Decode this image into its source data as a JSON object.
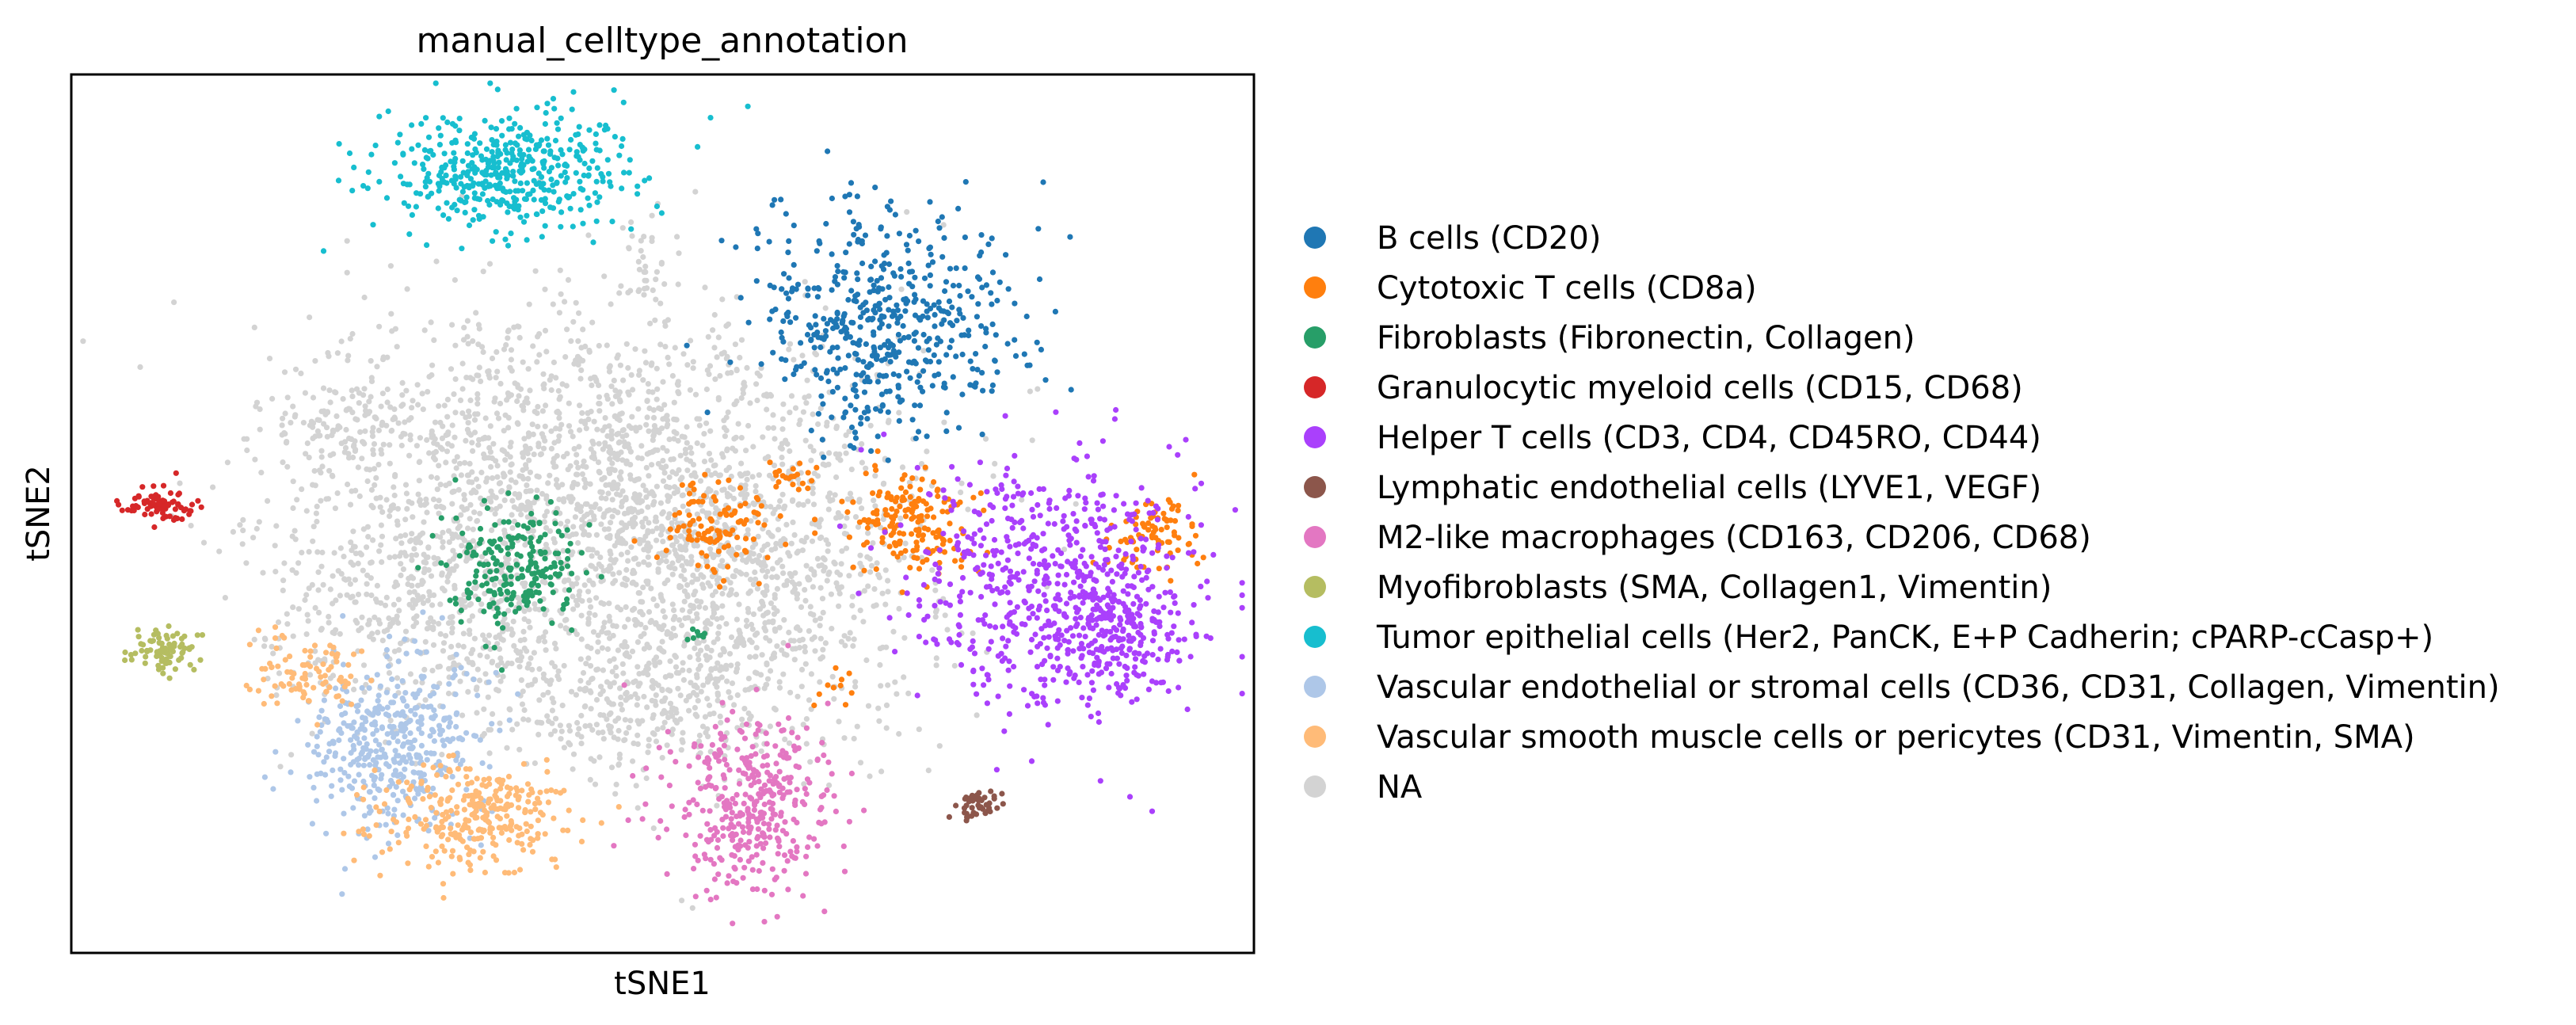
{
  "chart_data": {
    "type": "scatter",
    "title": "manual_celltype_annotation",
    "xlabel": "tSNE1",
    "ylabel": "tSNE2",
    "xlim": [
      0,
      100
    ],
    "ylim": [
      0,
      100
    ],
    "grid": false,
    "ticks_shown": false,
    "legend_position": "right",
    "note": "tSNE embedding coordinates are unlabeled; values are approximate cluster positions in 0–100 plot units",
    "series": [
      {
        "name": "B cells (CD20)",
        "color": "#1f77b4",
        "clusters": [
          {
            "cx": 69,
            "cy": 72,
            "sx": 5.5,
            "sy": 6.5,
            "n": 520
          }
        ]
      },
      {
        "name": "Cytotoxic T cells (CD8a)",
        "color": "#ff7f0e",
        "clusters": [
          {
            "cx": 71,
            "cy": 49,
            "sx": 2.6,
            "sy": 3.3,
            "n": 170
          },
          {
            "cx": 54.5,
            "cy": 48.5,
            "sx": 2.3,
            "sy": 2.5,
            "n": 110
          },
          {
            "cx": 91.5,
            "cy": 48,
            "sx": 2.2,
            "sy": 2.3,
            "n": 80
          },
          {
            "cx": 61,
            "cy": 54,
            "sx": 1.3,
            "sy": 1.0,
            "n": 22
          },
          {
            "cx": 64,
            "cy": 30,
            "sx": 0.9,
            "sy": 1.2,
            "n": 10
          }
        ]
      },
      {
        "name": "Fibroblasts (Fibronectin, Collagen)",
        "color": "#279e68",
        "clusters": [
          {
            "cx": 37.5,
            "cy": 44,
            "sx": 2.8,
            "sy": 3.3,
            "n": 220
          },
          {
            "cx": 53,
            "cy": 36,
            "sx": 0.6,
            "sy": 0.6,
            "n": 8
          }
        ]
      },
      {
        "name": "Granulocytic myeloid cells (CD15, CD68)",
        "color": "#d62728",
        "clusters": [
          {
            "cx": 7.5,
            "cy": 51,
            "sx": 1.7,
            "sy": 1.0,
            "n": 80
          }
        ]
      },
      {
        "name": "Helper T cells (CD3, CD4, CD45RO, CD44)",
        "color": "#aa40fc",
        "clusters": [
          {
            "cx": 83,
            "cy": 42,
            "sx": 6.0,
            "sy": 7.0,
            "n": 600
          },
          {
            "cx": 88,
            "cy": 36,
            "sx": 3.5,
            "sy": 3.5,
            "n": 180
          }
        ]
      },
      {
        "name": "Lymphatic endothelial cells (LYVE1, VEGF)",
        "color": "#8c564b",
        "clusters": [
          {
            "cx": 76.5,
            "cy": 17,
            "sx": 1.0,
            "sy": 1.0,
            "n": 45
          }
        ]
      },
      {
        "name": "M2-like macrophages (CD163, CD206, CD68)",
        "color": "#e377c2",
        "clusters": [
          {
            "cx": 57.5,
            "cy": 17,
            "sx": 3.5,
            "sy": 5.0,
            "n": 380
          }
        ]
      },
      {
        "name": "Myofibroblasts (SMA, Collagen1, Vimentin)",
        "color": "#b5bd61",
        "clusters": [
          {
            "cx": 8,
            "cy": 34.5,
            "sx": 1.6,
            "sy": 1.3,
            "n": 80
          }
        ]
      },
      {
        "name": "Tumor epithelial cells (Her2, PanCK, E+P Cadherin; cPARP-cCasp+)",
        "color": "#17becf",
        "clusters": [
          {
            "cx": 36,
            "cy": 89,
            "sx": 5.5,
            "sy": 3.5,
            "n": 450
          }
        ]
      },
      {
        "name": "Vascular endothelial or stromal cells (CD36, CD31, Collagen, Vimentin)",
        "color": "#aec7e8",
        "clusters": [
          {
            "cx": 27,
            "cy": 23.5,
            "sx": 3.6,
            "sy": 5.0,
            "n": 420
          }
        ]
      },
      {
        "name": "Vascular smooth muscle cells or pericytes (CD31, Vimentin, SMA)",
        "color": "#ffbb78",
        "clusters": [
          {
            "cx": 34.5,
            "cy": 15.5,
            "sx": 3.8,
            "sy": 3.0,
            "n": 300
          },
          {
            "cx": 19.5,
            "cy": 31.5,
            "sx": 2.4,
            "sy": 2.4,
            "n": 90
          }
        ]
      },
      {
        "name": "NA",
        "color": "#d3d3d3",
        "clusters": [
          {
            "cx": 44,
            "cy": 55,
            "sx": 12.0,
            "sy": 10.0,
            "n": 1500
          },
          {
            "cx": 55,
            "cy": 42,
            "sx": 9.0,
            "sy": 9.0,
            "n": 900
          },
          {
            "cx": 30,
            "cy": 40,
            "sx": 7.0,
            "sy": 7.0,
            "n": 500
          },
          {
            "cx": 23,
            "cy": 60,
            "sx": 3.5,
            "sy": 3.5,
            "n": 120
          },
          {
            "cx": 48,
            "cy": 28,
            "sx": 6.0,
            "sy": 4.0,
            "n": 300
          },
          {
            "cx": 49,
            "cy": 79,
            "sx": 1.0,
            "sy": 2.5,
            "n": 30
          }
        ]
      }
    ]
  }
}
